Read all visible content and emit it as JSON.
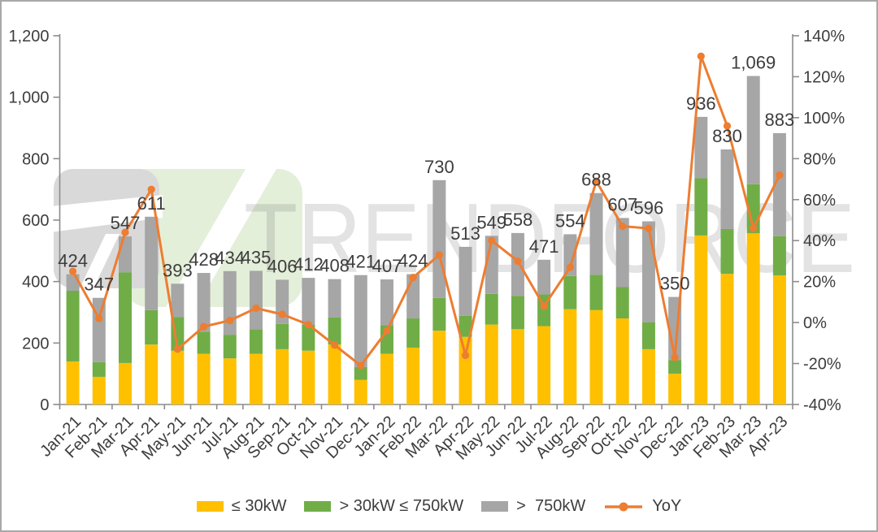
{
  "watermark": {
    "text": "TRENDFORCE"
  },
  "colors": {
    "bar_le30": "#FFC000",
    "bar_30to750": "#70AD47",
    "bar_gt750": "#A6A6A6",
    "yoy_line": "#ED7D31",
    "label_text": "#3d3d3d",
    "axis_line": "#8c8c8c",
    "watermark_gray": "#d9d9d9",
    "watermark_green": "#e4efda"
  },
  "legend": {
    "items": [
      {
        "label": "≤ 30kW",
        "marker": "swatch",
        "series_index": 0
      },
      {
        "label": "> 30kW ≤ 750kW",
        "marker": "swatch",
        "series_index": 1
      },
      {
        "label": ">  750kW",
        "marker": "swatch",
        "series_index": 2
      },
      {
        "label": "YoY",
        "marker": "line-dot",
        "series_index": 3
      }
    ]
  },
  "chart_data": {
    "type": "bar",
    "subtype": "stacked-bars-with-line",
    "stacked": true,
    "grid": false,
    "legend_position": "bottom",
    "categories": [
      "Jan-21",
      "Feb-21",
      "Mar-21",
      "Apr-21",
      "May-21",
      "Jun-21",
      "Jul-21",
      "Aug-21",
      "Sep-21",
      "Oct-21",
      "Nov-21",
      "Dec-21",
      "Jan-22",
      "Feb-22",
      "Mar-22",
      "Apr-22",
      "May-22",
      "Jun-22",
      "Jul-22",
      "Aug-22",
      "Sep-22",
      "Oct-22",
      "Nov-22",
      "Dec-22",
      "Jan-23",
      "Feb-23",
      "Mar-23",
      "Apr-23"
    ],
    "series": [
      {
        "name": "≤ 30kW",
        "type": "bar",
        "axis": "left",
        "color": "#FFC000",
        "values": [
          140,
          90,
          135,
          195,
          175,
          165,
          150,
          165,
          180,
          175,
          195,
          80,
          165,
          185,
          240,
          220,
          260,
          245,
          255,
          310,
          307,
          280,
          180,
          100,
          550,
          425,
          557,
          420
        ]
      },
      {
        "name": "> 30kW ≤ 750kW",
        "type": "bar",
        "axis": "left",
        "color": "#70AD47",
        "values": [
          230,
          48,
          295,
          112,
          110,
          72,
          77,
          80,
          82,
          85,
          88,
          42,
          93,
          95,
          107,
          69,
          100,
          108,
          103,
          108,
          115,
          102,
          87,
          45,
          186,
          146,
          160,
          128
        ]
      },
      {
        "name": ">  750kW",
        "type": "bar",
        "axis": "left",
        "color": "#A6A6A6",
        "values": [
          54,
          209,
          117,
          304,
          108,
          191,
          207,
          190,
          144,
          152,
          125,
          299,
          149,
          144,
          383,
          224,
          189,
          205,
          113,
          136,
          266,
          225,
          329,
          205,
          200,
          259,
          352,
          335
        ]
      },
      {
        "name": "YoY",
        "type": "line",
        "axis": "right",
        "color": "#ED7D31",
        "values_pct": [
          25,
          2,
          44,
          65,
          -13,
          -2,
          1,
          7,
          4,
          -1,
          -11,
          -21,
          -4,
          22,
          33,
          -16,
          40,
          30,
          8,
          27,
          69,
          47,
          46,
          -17,
          130,
          96,
          46,
          72
        ]
      }
    ],
    "totals": [
      424,
      347,
      547,
      611,
      393,
      428,
      434,
      435,
      406,
      412,
      408,
      421,
      407,
      424,
      730,
      513,
      549,
      558,
      471,
      554,
      688,
      607,
      596,
      350,
      936,
      830,
      1069,
      883
    ],
    "total_labels": [
      "424",
      "347",
      "547",
      "611",
      "393",
      "428",
      "434",
      "435",
      "406",
      "412",
      "408",
      "421",
      "407",
      "424",
      "730",
      "513",
      "549",
      "558",
      "471",
      "554",
      "688",
      "607",
      "596",
      "350",
      "936",
      "830",
      "1,069",
      "883"
    ],
    "left_axis": {
      "min": 0,
      "max": 1200,
      "step": 200,
      "tick_labels": [
        "0",
        "200",
        "400",
        "600",
        "800",
        "1,000",
        "1,200"
      ]
    },
    "right_axis": {
      "min": -40,
      "max": 140,
      "step": 20,
      "unit": "%",
      "tick_labels": [
        "-40%",
        "-20%",
        "0%",
        "20%",
        "40%",
        "60%",
        "80%",
        "100%",
        "120%",
        "140%"
      ]
    }
  }
}
